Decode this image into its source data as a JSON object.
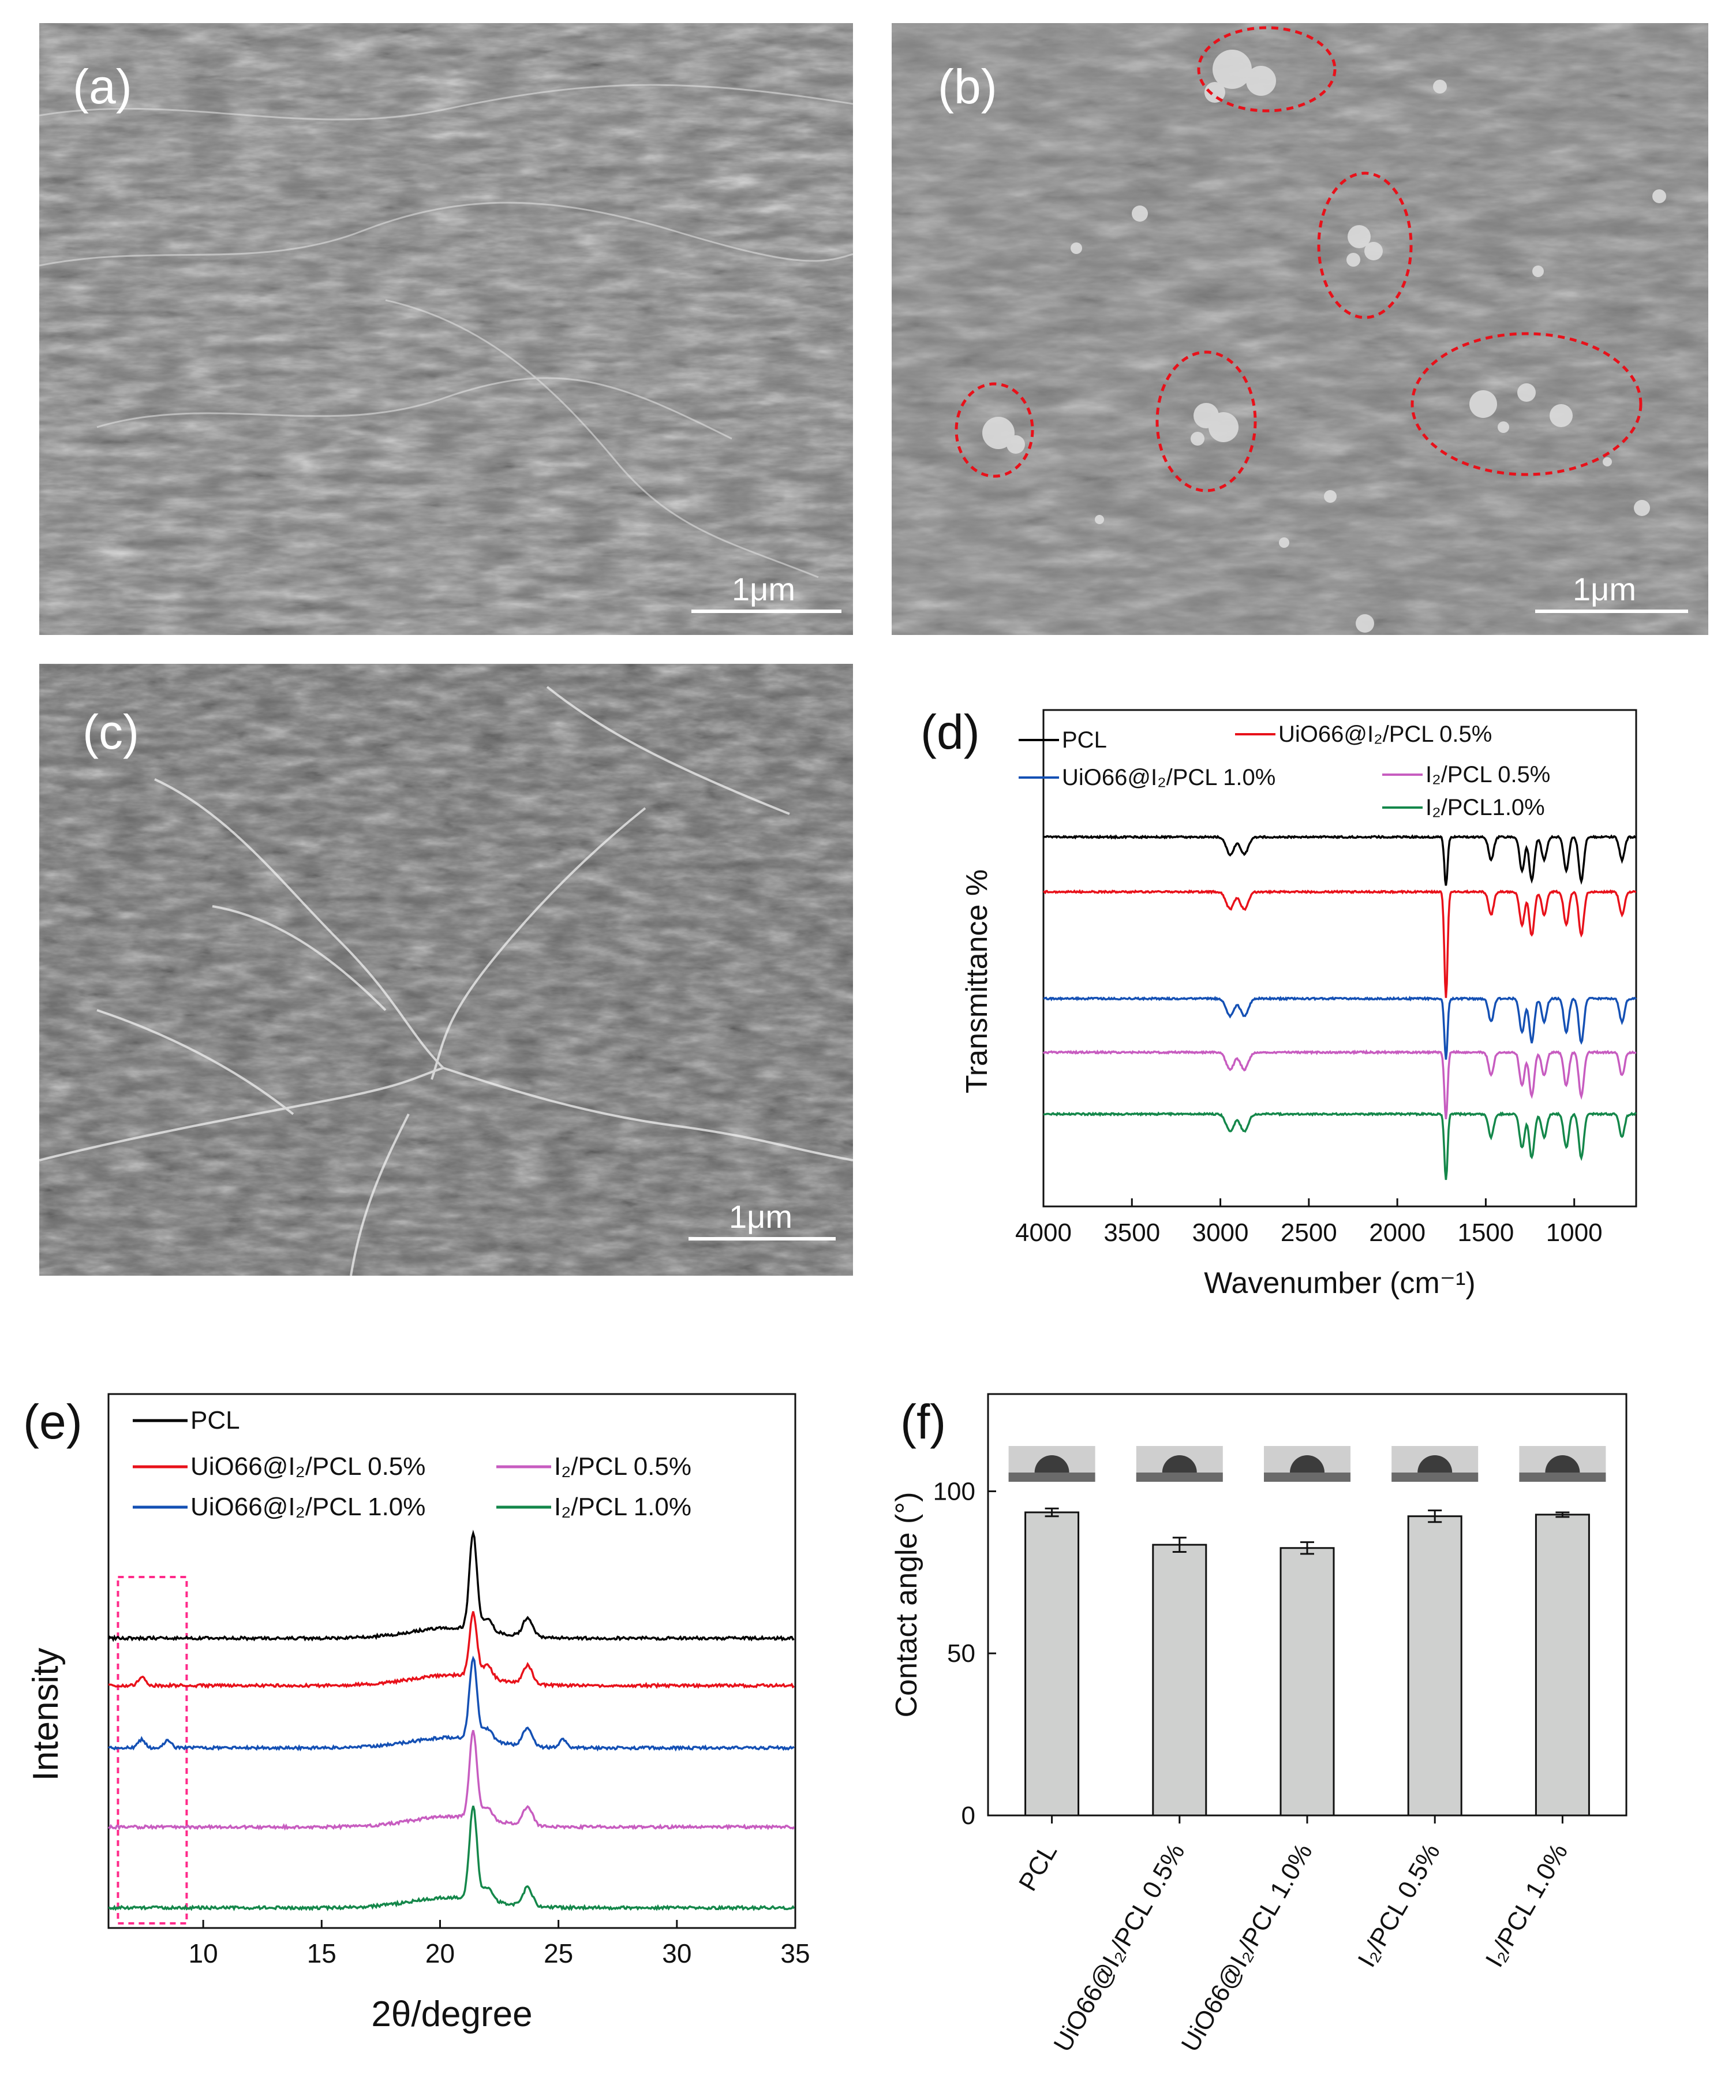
{
  "panels": {
    "a": {
      "label": "(a)",
      "scalebar": "1μm"
    },
    "b": {
      "label": "(b)",
      "scalebar": "1μm"
    },
    "c": {
      "label": "(c)",
      "scalebar": "1μm"
    },
    "d": {
      "label": "(d)"
    },
    "e": {
      "label": "(e)"
    },
    "f": {
      "label": "(f)"
    }
  },
  "chart_data": [
    {
      "id": "d",
      "type": "line",
      "title": "",
      "xlabel": "Wavenumber (cm⁻¹)",
      "ylabel": "Transmittance %",
      "xlim": [
        4000,
        650
      ],
      "x_reversed": true,
      "xticks": [
        "4000",
        "3500",
        "3000",
        "2500",
        "2000",
        "1500",
        "1000"
      ],
      "grid": false,
      "legend_position": "top",
      "series": [
        {
          "name": "PCL",
          "color": "#000000",
          "peaks": [
            2945,
            2865,
            1725,
            1470,
            1295,
            1240,
            1170,
            1045,
            960,
            730
          ]
        },
        {
          "name": "UiO66@I₂/PCL 0.5%",
          "color": "#e8111a",
          "peaks": [
            2945,
            2865,
            1725,
            1470,
            1295,
            1240,
            1170,
            1045,
            960,
            730
          ]
        },
        {
          "name": "UiO66@I₂/PCL 1.0%",
          "color": "#1450b4",
          "peaks": [
            2945,
            2865,
            1725,
            1470,
            1295,
            1240,
            1170,
            1045,
            960,
            730
          ]
        },
        {
          "name": "I₂/PCL 0.5%",
          "color": "#c75cc0",
          "peaks": [
            2945,
            2865,
            1725,
            1470,
            1295,
            1240,
            1170,
            1045,
            960,
            730
          ]
        },
        {
          "name": "I₂/PCL1.0%",
          "color": "#14874a",
          "peaks": [
            2945,
            2865,
            1725,
            1470,
            1295,
            1240,
            1170,
            1045,
            960,
            730
          ]
        }
      ]
    },
    {
      "id": "e",
      "type": "line",
      "title": "",
      "xlabel": "2θ/degree",
      "ylabel": "Intensity",
      "xlim": [
        5,
        35
      ],
      "xticks": [
        "10",
        "15",
        "20",
        "25",
        "30",
        "35"
      ],
      "grid": false,
      "legend_position": "top",
      "series": [
        {
          "name": "PCL",
          "color": "#000000",
          "peaks": [
            21.4,
            22.0,
            23.7
          ]
        },
        {
          "name": "UiO66@I₂/PCL 0.5%",
          "color": "#e8111a",
          "peaks": [
            7.4,
            21.4,
            22.0,
            23.7
          ]
        },
        {
          "name": "UiO66@I₂/PCL 1.0%",
          "color": "#1450b4",
          "peaks": [
            7.4,
            8.5,
            21.4,
            22.0,
            23.7,
            25.2
          ]
        },
        {
          "name": "I₂/PCL 0.5%",
          "color": "#c75cc0",
          "peaks": [
            21.4,
            22.0,
            23.7
          ]
        },
        {
          "name": "I₂/PCL 1.0%",
          "color": "#14874a",
          "peaks": [
            21.4,
            22.0,
            23.7
          ]
        }
      ]
    },
    {
      "id": "f",
      "type": "bar",
      "title": "",
      "xlabel": "",
      "ylabel": "Contact angle (°)",
      "ylim": [
        0,
        130
      ],
      "yticks": [
        "0",
        "50",
        "100"
      ],
      "grid": false,
      "bar_color": "#cfd0cf",
      "categories": [
        "PCL",
        "UiO66@I₂/PCL 0.5%",
        "UiO66@I₂/PCL 1.0%",
        "I₂/PCL 0.5%",
        "I₂/PCL 1.0%"
      ],
      "values": [
        93.5,
        83.5,
        82.5,
        92.3,
        92.8
      ],
      "errors": [
        1.2,
        2.2,
        1.8,
        1.8,
        0.7
      ]
    }
  ]
}
